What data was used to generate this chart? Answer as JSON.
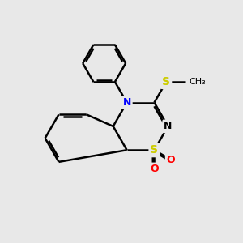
{
  "background_color": "#e8e8e8",
  "bond_color": "#000000",
  "N_color": "#0000ff",
  "S_color": "#cccc00",
  "O_color": "#ff0000",
  "line_width": 1.8,
  "figsize": [
    3.0,
    3.0
  ],
  "dpi": 100,
  "xlim": [
    0,
    10
  ],
  "ylim": [
    0,
    10
  ]
}
